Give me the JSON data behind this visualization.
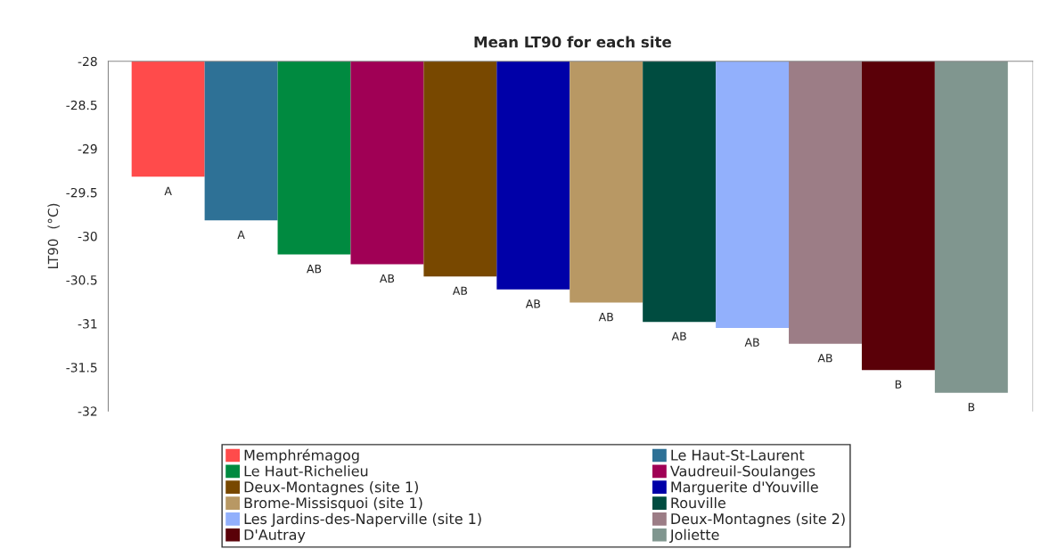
{
  "chart_data": {
    "type": "bar",
    "title": "Mean LT90 for each site",
    "ylabel": "LT90  (°C)",
    "categories": [
      null,
      null,
      null,
      null,
      null,
      null,
      null,
      null,
      null,
      null,
      null,
      null
    ],
    "series": [
      {
        "name": "Memphrémagog",
        "color": "#ff4b4b",
        "values": [
          -29.32,
          null,
          null,
          null,
          null,
          null,
          null,
          null,
          null,
          null,
          null,
          null
        ],
        "value_labels": [
          "A",
          null,
          null,
          null,
          null,
          null,
          null,
          null,
          null,
          null,
          null,
          null
        ]
      },
      {
        "name": "Le Haut-St-Laurent",
        "color": "#2e7196",
        "values": [
          null,
          -29.82,
          null,
          null,
          null,
          null,
          null,
          null,
          null,
          null,
          null,
          null
        ],
        "value_labels": [
          null,
          "A",
          null,
          null,
          null,
          null,
          null,
          null,
          null,
          null,
          null,
          null
        ]
      },
      {
        "name": "Le Haut-Richelieu",
        "color": "#008a40",
        "values": [
          null,
          null,
          -30.21,
          null,
          null,
          null,
          null,
          null,
          null,
          null,
          null,
          null
        ],
        "value_labels": [
          null,
          null,
          "AB",
          null,
          null,
          null,
          null,
          null,
          null,
          null,
          null,
          null
        ]
      },
      {
        "name": "Vaudreuil-Soulanges",
        "color": "#a00055",
        "values": [
          null,
          null,
          null,
          -30.32,
          null,
          null,
          null,
          null,
          null,
          null,
          null,
          null
        ],
        "value_labels": [
          null,
          null,
          null,
          "AB",
          null,
          null,
          null,
          null,
          null,
          null,
          null,
          null
        ]
      },
      {
        "name": "Deux-Montagnes (site 1)",
        "color": "#784800",
        "values": [
          null,
          null,
          null,
          null,
          -30.46,
          null,
          null,
          null,
          null,
          null,
          null,
          null
        ],
        "value_labels": [
          null,
          null,
          null,
          null,
          "AB",
          null,
          null,
          null,
          null,
          null,
          null,
          null
        ]
      },
      {
        "name": "Marguerite d'Youville",
        "color": "#0000a8",
        "values": [
          null,
          null,
          null,
          null,
          null,
          -30.61,
          null,
          null,
          null,
          null,
          null,
          null
        ],
        "value_labels": [
          null,
          null,
          null,
          null,
          null,
          "AB",
          null,
          null,
          null,
          null,
          null,
          null
        ]
      },
      {
        "name": "Brome-Missisquoi (site 1)",
        "color": "#b89864",
        "values": [
          null,
          null,
          null,
          null,
          null,
          null,
          -30.76,
          null,
          null,
          null,
          null,
          null
        ],
        "value_labels": [
          null,
          null,
          null,
          null,
          null,
          null,
          "AB",
          null,
          null,
          null,
          null,
          null
        ]
      },
      {
        "name": "Rouville",
        "color": "#004c40",
        "values": [
          null,
          null,
          null,
          null,
          null,
          null,
          null,
          -30.98,
          null,
          null,
          null,
          null
        ],
        "value_labels": [
          null,
          null,
          null,
          null,
          null,
          null,
          null,
          "AB",
          null,
          null,
          null,
          null
        ]
      },
      {
        "name": "Les Jardins-des-Naperville (site 1)",
        "color": "#92b0fc",
        "values": [
          null,
          null,
          null,
          null,
          null,
          null,
          null,
          null,
          -31.05,
          null,
          null,
          null
        ],
        "value_labels": [
          null,
          null,
          null,
          null,
          null,
          null,
          null,
          null,
          "AB",
          null,
          null,
          null
        ]
      },
      {
        "name": "Deux-Montagnes (site 2)",
        "color": "#9c7d86",
        "values": [
          null,
          null,
          null,
          null,
          null,
          null,
          null,
          null,
          null,
          -31.23,
          null,
          null
        ],
        "value_labels": [
          null,
          null,
          null,
          null,
          null,
          null,
          null,
          null,
          null,
          "AB",
          null,
          null
        ]
      },
      {
        "name": "D'Autray",
        "color": "#5a0008",
        "values": [
          null,
          null,
          null,
          null,
          null,
          null,
          null,
          null,
          null,
          null,
          -31.53,
          null
        ],
        "value_labels": [
          null,
          null,
          null,
          null,
          null,
          null,
          null,
          null,
          null,
          null,
          "B",
          null
        ]
      },
      {
        "name": "Joliette",
        "color": "#80968f",
        "values": [
          null,
          null,
          null,
          null,
          null,
          null,
          null,
          null,
          null,
          null,
          null,
          -31.79
        ],
        "value_labels": [
          null,
          null,
          null,
          null,
          null,
          null,
          null,
          null,
          null,
          null,
          null,
          "B"
        ]
      }
    ],
    "ylim": [
      -32,
      -28
    ],
    "yticks": [
      -32,
      -31.5,
      -31,
      -30.5,
      -30,
      -29.5,
      -29,
      -28.5,
      -28
    ],
    "legend": "bottom",
    "grid": false
  }
}
